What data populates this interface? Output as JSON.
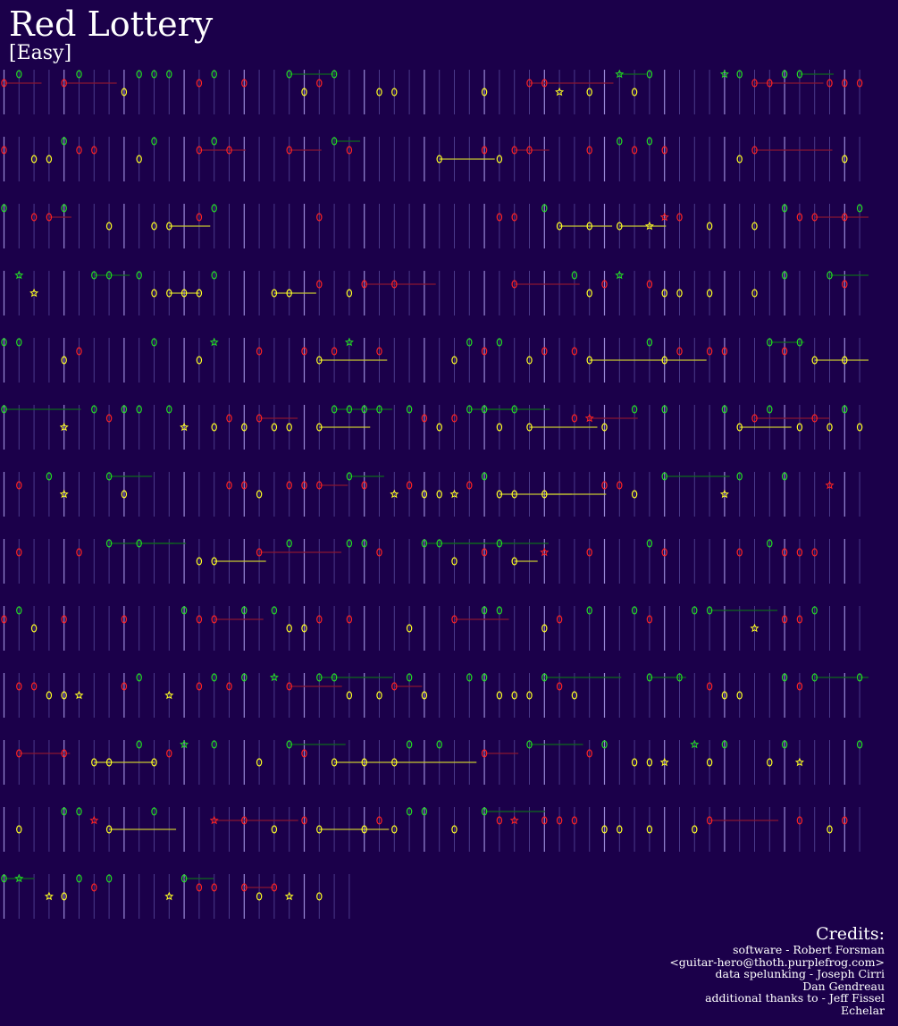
{
  "song": {
    "title": "Red Lottery",
    "difficulty": "[Easy]"
  },
  "colors": {
    "background": "#1b004a",
    "green_note": "#22dd22",
    "red_note": "#ff2222",
    "yellow_note": "#ffff22",
    "green_sustain": "#0e6a1c",
    "red_sustain": "#8a1530",
    "yellow_sustain": "#c8c830",
    "measure_line": "#9a8ad8",
    "beat_line": "#4a3a8a"
  },
  "icons": {
    "note": "oval-note-icon",
    "star_power": "star-note-icon"
  },
  "credits": {
    "heading": "Credits:",
    "lines": [
      "software - Robert Forsman",
      "<guitar-hero@thoth.purplefrog.com>",
      "data spelunking - Joseph Cirri",
      "Dan Gendreau",
      "additional thanks to - Jeff Fissel",
      "Echelar"
    ]
  }
}
